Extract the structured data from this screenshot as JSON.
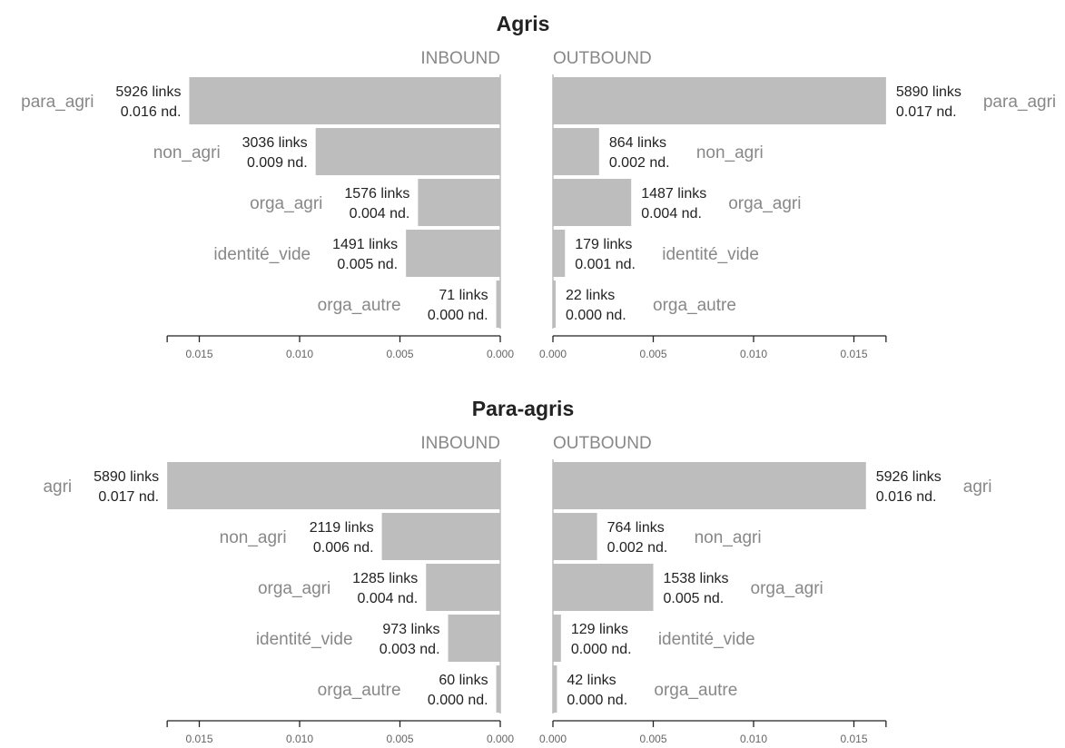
{
  "chart_data": [
    {
      "type": "bar",
      "title": "Agris",
      "inbound": {
        "label": "INBOUND",
        "categories": [
          "para_agri",
          "non_agri",
          "orga_agri",
          "identité_vide",
          "orga_autre"
        ],
        "values": [
          0.0155,
          0.0092,
          0.0041,
          0.0047,
          0.0002
        ],
        "links": [
          "5926 links",
          "3036 links",
          "1576 links",
          "1491 links",
          "71 links"
        ],
        "density": [
          "0.016 nd.",
          "0.009 nd.",
          "0.004 nd.",
          "0.005 nd.",
          "0.000 nd."
        ]
      },
      "outbound": {
        "label": "OUTBOUND",
        "categories": [
          "para_agri",
          "non_agri",
          "orga_agri",
          "identité_vide",
          "orga_autre"
        ],
        "values": [
          0.0166,
          0.0023,
          0.0039,
          0.0006,
          0.0001
        ],
        "links": [
          "5890 links",
          "864 links",
          "1487 links",
          "179 links",
          "22 links"
        ],
        "density": [
          "0.017 nd.",
          "0.002 nd.",
          "0.004 nd.",
          "0.001 nd.",
          "0.000 nd."
        ]
      },
      "xlim": [
        0,
        0.0166
      ],
      "ticks": [
        "0.000",
        "0.005",
        "0.010",
        "0.015"
      ],
      "tick_values": [
        0,
        0.005,
        0.01,
        0.015
      ]
    },
    {
      "type": "bar",
      "title": "Para-agris",
      "inbound": {
        "label": "INBOUND",
        "categories": [
          "agri",
          "non_agri",
          "orga_agri",
          "identité_vide",
          "orga_autre"
        ],
        "values": [
          0.0166,
          0.0059,
          0.0037,
          0.0026,
          0.0002
        ],
        "links": [
          "5890 links",
          "2119 links",
          "1285 links",
          "973 links",
          "60 links"
        ],
        "density": [
          "0.017 nd.",
          "0.006 nd.",
          "0.004 nd.",
          "0.003 nd.",
          "0.000 nd."
        ]
      },
      "outbound": {
        "label": "OUTBOUND",
        "categories": [
          "agri",
          "non_agri",
          "orga_agri",
          "identité_vide",
          "orga_autre"
        ],
        "values": [
          0.0156,
          0.0022,
          0.005,
          0.0004,
          0.0002
        ],
        "links": [
          "5926 links",
          "764 links",
          "1538 links",
          "129 links",
          "42 links"
        ],
        "density": [
          "0.016 nd.",
          "0.002 nd.",
          "0.005 nd.",
          "0.000 nd.",
          "0.000 nd."
        ]
      },
      "xlim": [
        0,
        0.0166
      ],
      "ticks": [
        "0.000",
        "0.005",
        "0.010",
        "0.015"
      ],
      "tick_values": [
        0,
        0.005,
        0.01,
        0.015
      ]
    }
  ],
  "colors": {
    "bar": "#bdbdbd",
    "label": "#888888",
    "text": "#222222"
  }
}
